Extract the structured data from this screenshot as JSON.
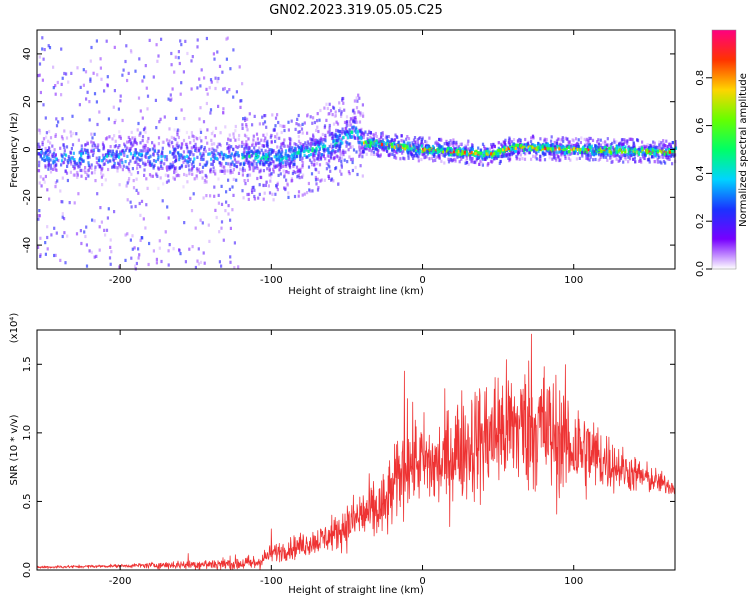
{
  "title": "GN02.2023.319.05.05.C25",
  "chart_data": [
    {
      "type": "heatmap",
      "xlabel": "Height of straight line (km)",
      "ylabel": "Frequency (Hz)",
      "xlim": [
        -255,
        167
      ],
      "ylim": [
        -50,
        50
      ],
      "xticks": [
        -200,
        -100,
        0,
        100
      ],
      "yticks": [
        -40,
        -20,
        0,
        20,
        40
      ],
      "colorbar": {
        "label": "Normalized spectral amplitude",
        "range": [
          0,
          1
        ],
        "ticks": [
          "0.0",
          "0.2",
          "0.4",
          "0.6",
          "0.8"
        ],
        "colors": [
          "#ffffff",
          "#7700ff",
          "#1a33ff",
          "#00d4ff",
          "#00ff66",
          "#66ff00",
          "#ffd400",
          "#ff3300",
          "#ff0080"
        ]
      },
      "regions": [
        {
          "x_range": [
            -255,
            -120
          ],
          "center_freq": 0,
          "band_halfwidth": 8,
          "scatter_halfwidth": 50,
          "peak_amplitude": 0.45
        },
        {
          "x_range": [
            -120,
            -40
          ],
          "center_freq": 0,
          "band_halfwidth": 6,
          "scatter_halfwidth": 18,
          "peak_amplitude": 0.55
        },
        {
          "x_range": [
            -40,
            167
          ],
          "center_freq": 0,
          "band_halfwidth": 2,
          "scatter_halfwidth": 5,
          "peak_amplitude": 1.0
        }
      ],
      "ridge": [
        [
          -90,
          -3
        ],
        [
          -60,
          2
        ],
        [
          -45,
          8
        ],
        [
          -40,
          3
        ],
        [
          0,
          0
        ],
        [
          45,
          -2
        ],
        [
          60,
          1
        ],
        [
          100,
          0
        ],
        [
          167,
          -1
        ]
      ]
    },
    {
      "type": "line",
      "xlabel": "Height of straight line (km)",
      "ylabel": "SNR (10 * v/v)",
      "y_multiplier": "(x10⁴)",
      "xlim": [
        -255,
        167
      ],
      "ylim": [
        0,
        1.75
      ],
      "xticks": [
        -200,
        -100,
        0,
        100
      ],
      "yticks": [
        "0.0",
        "0.5",
        "1.0",
        "1.5"
      ],
      "color": "#ee3333",
      "envelope": [
        [
          -255,
          0.02
        ],
        [
          -200,
          0.03
        ],
        [
          -150,
          0.04
        ],
        [
          -110,
          0.05
        ],
        [
          -100,
          0.12
        ],
        [
          -80,
          0.18
        ],
        [
          -60,
          0.25
        ],
        [
          -40,
          0.4
        ],
        [
          -25,
          0.45
        ],
        [
          -15,
          0.7
        ],
        [
          -5,
          0.8
        ],
        [
          10,
          0.75
        ],
        [
          25,
          0.9
        ],
        [
          40,
          0.95
        ],
        [
          60,
          1.05
        ],
        [
          75,
          1.05
        ],
        [
          100,
          0.9
        ],
        [
          120,
          0.8
        ],
        [
          140,
          0.7
        ],
        [
          167,
          0.6
        ]
      ],
      "noise": [
        [
          -255,
          0.01
        ],
        [
          -200,
          0.01
        ],
        [
          -100,
          0.06
        ],
        [
          -60,
          0.1
        ],
        [
          -40,
          0.2
        ],
        [
          -20,
          0.25
        ],
        [
          0,
          0.3
        ],
        [
          40,
          0.4
        ],
        [
          80,
          0.45
        ],
        [
          100,
          0.35
        ],
        [
          130,
          0.15
        ],
        [
          167,
          0.05
        ]
      ],
      "peaks": [
        {
          "x": -155,
          "y": 0.12
        },
        {
          "x": -100,
          "y": 0.3
        },
        {
          "x": -60,
          "y": 0.4
        },
        {
          "x": -12,
          "y": 1.45
        },
        {
          "x": -10,
          "y": 1.25
        },
        {
          "x": 50,
          "y": 1.4
        },
        {
          "x": 72,
          "y": 1.72
        },
        {
          "x": 80,
          "y": 1.4
        }
      ]
    }
  ]
}
